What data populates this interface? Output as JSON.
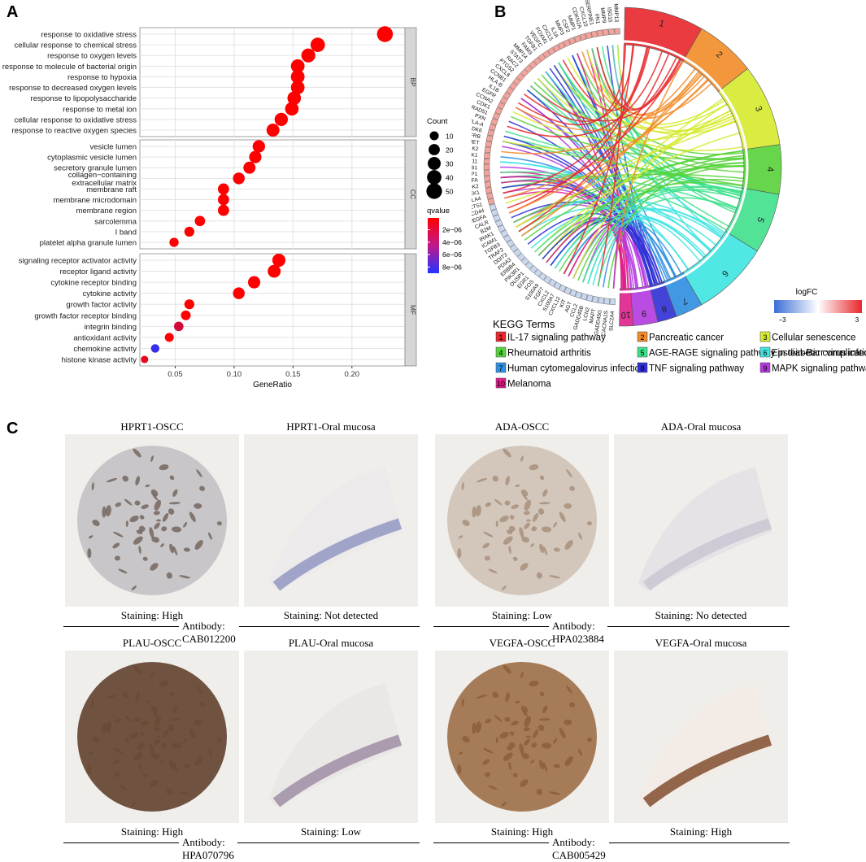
{
  "panels": {
    "a": "A",
    "b": "B",
    "c": "C"
  },
  "chart_data": [
    {
      "type": "scatter",
      "title": "",
      "xlabel": "GeneRatio",
      "ylabel": "",
      "xlim": [
        0.02,
        0.245
      ],
      "x_ticks": [
        "0.05",
        "0.10",
        "0.15",
        "0.20"
      ],
      "x_tick_values": [
        0.05,
        0.1,
        0.15,
        0.2
      ],
      "facets": [
        {
          "label": "BP",
          "terms": [
            {
              "term": "response to oxidative stress",
              "x": 0.228,
              "count": 52,
              "qvalue": 1e-07
            },
            {
              "term": "cellular response to chemical stress",
              "x": 0.171,
              "count": 40,
              "qvalue": 1e-07
            },
            {
              "term": "response to oxygen levels",
              "x": 0.163,
              "count": 37,
              "qvalue": 1e-07
            },
            {
              "term": "response to molecule of bacterial origin",
              "x": 0.154,
              "count": 35,
              "qvalue": 1e-07
            },
            {
              "term": "response to hypoxia",
              "x": 0.154,
              "count": 35,
              "qvalue": 1e-07
            },
            {
              "term": "response to decreased oxygen levels",
              "x": 0.154,
              "count": 35,
              "qvalue": 1e-07
            },
            {
              "term": "response to lipopolysaccharide",
              "x": 0.151,
              "count": 34,
              "qvalue": 1e-07
            },
            {
              "term": "response to metal ion",
              "x": 0.149,
              "count": 34,
              "qvalue": 1e-07
            },
            {
              "term": "cellular response to oxidative stress",
              "x": 0.14,
              "count": 32,
              "qvalue": 1e-07
            },
            {
              "term": "response to reactive oxygen species",
              "x": 0.133,
              "count": 30,
              "qvalue": 1e-07
            }
          ]
        },
        {
          "label": "CC",
          "terms": [
            {
              "term": "vesicle lumen",
              "x": 0.121,
              "count": 27,
              "qvalue": 1e-07
            },
            {
              "term": "cytoplasmic vesicle lumen",
              "x": 0.118,
              "count": 26,
              "qvalue": 1e-07
            },
            {
              "term": "secretory granule lumen",
              "x": 0.113,
              "count": 25,
              "qvalue": 1e-07
            },
            {
              "term": "collagen−containing extracellular matrix",
              "x": 0.104,
              "count": 23,
              "qvalue": 1e-07
            },
            {
              "term": "membrane raft",
              "x": 0.091,
              "count": 20,
              "qvalue": 1e-07
            },
            {
              "term": "membrane microdomain",
              "x": 0.091,
              "count": 20,
              "qvalue": 1e-07
            },
            {
              "term": "membrane region",
              "x": 0.091,
              "count": 20,
              "qvalue": 1e-07
            },
            {
              "term": "sarcolemma",
              "x": 0.071,
              "count": 16,
              "qvalue": 1e-07
            },
            {
              "term": "I band",
              "x": 0.062,
              "count": 14,
              "qvalue": 1e-07
            },
            {
              "term": "platelet alpha granule lumen",
              "x": 0.049,
              "count": 11,
              "qvalue": 1e-07
            }
          ]
        },
        {
          "label": "MF",
          "terms": [
            {
              "term": "signaling receptor activator activity",
              "x": 0.138,
              "count": 31,
              "qvalue": 1e-07
            },
            {
              "term": "receptor ligand activity",
              "x": 0.134,
              "count": 30,
              "qvalue": 1e-07
            },
            {
              "term": "cytokine receptor binding",
              "x": 0.117,
              "count": 26,
              "qvalue": 1e-07
            },
            {
              "term": "cytokine activity",
              "x": 0.104,
              "count": 23,
              "qvalue": 1e-07
            },
            {
              "term": "growth factor activity",
              "x": 0.062,
              "count": 14,
              "qvalue": 1e-07
            },
            {
              "term": "growth factor receptor binding",
              "x": 0.059,
              "count": 13,
              "qvalue": 1.5e-07
            },
            {
              "term": "integrin binding",
              "x": 0.053,
              "count": 12,
              "qvalue": 2e-06
            },
            {
              "term": "antioxidant activity",
              "x": 0.045,
              "count": 10,
              "qvalue": 1e-07
            },
            {
              "term": "chemokine activity",
              "x": 0.033,
              "count": 8,
              "qvalue": 8.2e-06
            },
            {
              "term": "histone kinase activity",
              "x": 0.024,
              "count": 5,
              "qvalue": 1e-06
            }
          ]
        }
      ],
      "size_legend": {
        "title": "Count",
        "values": [
          10,
          20,
          30,
          40,
          50
        ],
        "labels": [
          "10",
          "20",
          "30",
          "40",
          "50"
        ]
      },
      "color_legend": {
        "title": "qvalue",
        "labels": [
          "2e−06",
          "4e−06",
          "6e−06",
          "8e−06"
        ],
        "values": [
          2e-06,
          4e-06,
          6e-06,
          8e-06
        ],
        "range": [
          1e-07,
          9e-06
        ],
        "low_color": "#ff0000",
        "high_color": "#2233ff"
      }
    },
    {
      "type": "chord",
      "title": "KEGG Terms",
      "legend_title": "KEGG Terms",
      "terms": [
        {
          "n": "1",
          "name": "IL-17 signaling pathway",
          "color": "#e8262b"
        },
        {
          "n": "2",
          "name": "Pancreatic cancer",
          "color": "#f28c28"
        },
        {
          "n": "3",
          "name": "Cellular senescence",
          "color": "#d6ea2e"
        },
        {
          "n": "4",
          "name": "Rheumatoid arthritis",
          "color": "#56d23a"
        },
        {
          "n": "5",
          "name": "AGE-RAGE signaling pathway in diabetic complications",
          "color": "#3fe08c"
        },
        {
          "n": "6",
          "name": "Epstein-Barr virus infection",
          "color": "#3ee4e2"
        },
        {
          "n": "7",
          "name": "Human cytomegalovirus infection",
          "color": "#2e8ee0"
        },
        {
          "n": "8",
          "name": "TNF signaling pathway",
          "color": "#2f2fd6"
        },
        {
          "n": "9",
          "name": "MAPK signaling pathway",
          "color": "#b338e0"
        },
        {
          "n": "10",
          "name": "Melanoma",
          "color": "#e01e8c"
        }
      ],
      "genes": [
        "MMP13",
        "ISG15",
        "MMP9",
        "FN1",
        "SERPINE1",
        "CXCL10",
        "CDKN2A",
        "MMP1",
        "CSF2",
        "MMP3",
        "IL1A",
        "CXCL5",
        "FOXM1",
        "VEGFC",
        "TGFB1",
        "FAM3",
        "MMP14",
        "STAT3",
        "RAC2",
        "PTGS2",
        "CXCL8",
        "CCNB1",
        "HLA-B",
        "IL1B",
        "EGFR",
        "CCNA2",
        "CDK1",
        "RAD51",
        "PXN",
        "HLA-A",
        "CDK6",
        "PDGFRB",
        "MET",
        "EIF2AK2",
        "BAK1",
        "CCL11",
        "HSP90B1",
        "EIF4EBP1",
        "TGFA",
        "CDK2",
        "CHEK1",
        "CTLA4",
        "ETS1",
        "CD44",
        "VEGFA",
        "CALR",
        "B2M",
        "IRAK1",
        "ICAM1",
        "TGFB3",
        "TRAF2",
        "DDIT3",
        "PDIA3",
        "ERBB4",
        "PIK3R1",
        "DUSP1",
        "EGR1",
        "FOS",
        "S100A9",
        "FGF7",
        "CXCL2",
        "S100A7",
        "CXCL12",
        "KIT",
        "AGT",
        "CCL2",
        "GADD45B",
        "LCN2",
        "MAPT",
        "GADD45G",
        "CACNA1S",
        "SLC2A4"
      ],
      "logfc_legend": {
        "title": "logFC",
        "min_label": "−3",
        "max_label": "3",
        "low_color": "#3b6fd6",
        "high_color": "#e8262b"
      }
    }
  ],
  "ihc": {
    "groups": [
      {
        "antibody": "Antibody: CAB012200",
        "samples": [
          {
            "title": "HPRT1-OSCC",
            "caption": "Staining: High",
            "tint": "#6b5a52",
            "bg": "#c8c6c8"
          },
          {
            "title": "HPRT1-Oral mucosa",
            "caption": "Staining: Not detected",
            "tint": "#8e92c0",
            "bg": "#eceaea"
          }
        ]
      },
      {
        "antibody": "Antibody: HPA023884",
        "samples": [
          {
            "title": "ADA-OSCC",
            "caption": "Staining: Low",
            "tint": "#a38a74",
            "bg": "#d3c7bc"
          },
          {
            "title": "ADA-Oral mucosa",
            "caption": "Staining: No detected",
            "tint": "#c8c4d2",
            "bg": "#e6e3e6"
          }
        ]
      },
      {
        "antibody": "Antibody: HPA070796",
        "samples": [
          {
            "title": "PLAU-OSCC",
            "caption": "Staining: High",
            "tint": "#6a4a34",
            "bg": "#6f5240"
          },
          {
            "title": "PLAU-Oral mucosa",
            "caption": "Staining: Low",
            "tint": "#9a8aa0",
            "bg": "#eae7e7"
          }
        ]
      },
      {
        "antibody": "Antibody: CAB005429",
        "samples": [
          {
            "title": "VEGFA-OSCC",
            "caption": "Staining: High",
            "tint": "#8a5a34",
            "bg": "#a57b58"
          },
          {
            "title": "VEGFA-Oral mucosa",
            "caption": "Staining: High",
            "tint": "#7a4424",
            "bg": "#f3ece6"
          }
        ]
      }
    ]
  }
}
